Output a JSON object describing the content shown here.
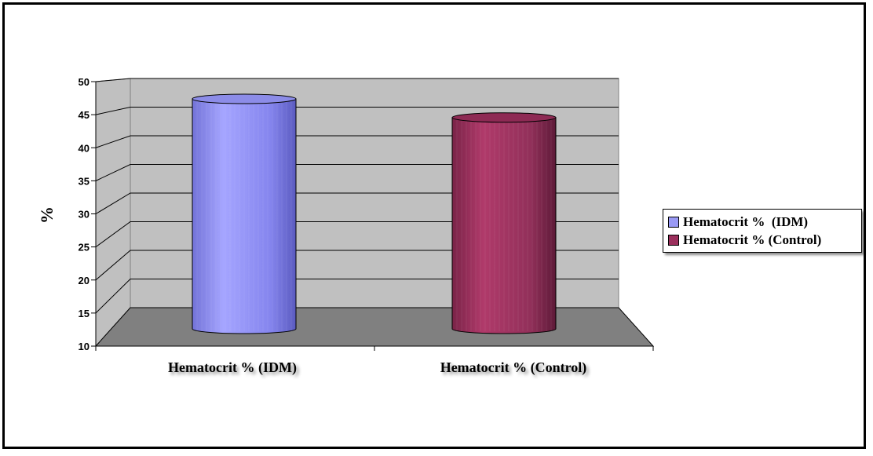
{
  "chart_data": {
    "type": "bar",
    "style": "3d-cylinder",
    "categories": [
      "Hematocrit %  (IDM)",
      "Hematocrit % (Control)"
    ],
    "values": [
      47,
      44
    ],
    "ylabel": "%",
    "ylim": [
      10,
      50
    ],
    "yticks": [
      10,
      15,
      20,
      25,
      30,
      35,
      40,
      45,
      50
    ],
    "grid": true,
    "legend_position": "right",
    "series": [
      {
        "name": "Hematocrit %  (IDM)",
        "color": "#9a9af5"
      },
      {
        "name": "Hematocrit % (Control)",
        "color": "#9b2f5c"
      }
    ]
  }
}
